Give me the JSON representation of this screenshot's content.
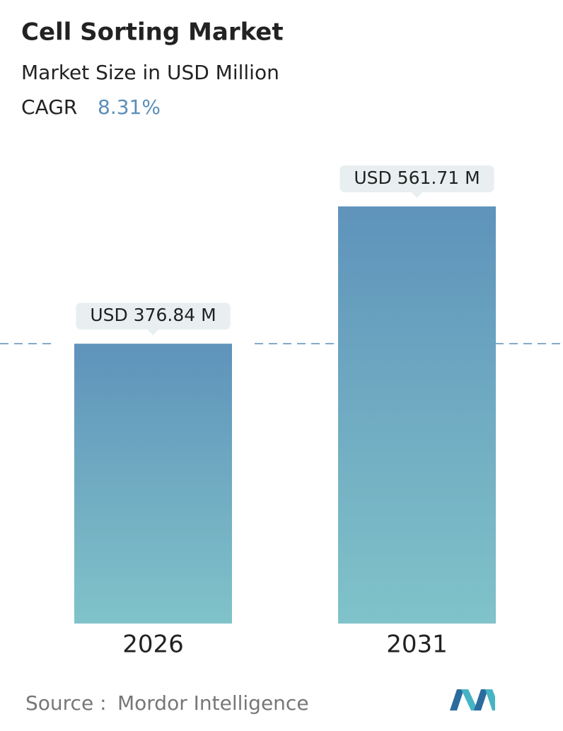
{
  "chart_data": {
    "type": "bar",
    "title": "Cell Sorting Market",
    "subtitle": "Market Size in USD Million",
    "cagr_label": "CAGR",
    "cagr_value": "8.31%",
    "categories": [
      "2026",
      "2031"
    ],
    "values": [
      376.84,
      561.71
    ],
    "value_labels": [
      "USD 376.84 M",
      "USD 561.71 M"
    ],
    "color_top": "#5f93bb",
    "color_bottom": "#80c3c9",
    "source_label": "Source :",
    "source": "Mordor Intelligence"
  }
}
